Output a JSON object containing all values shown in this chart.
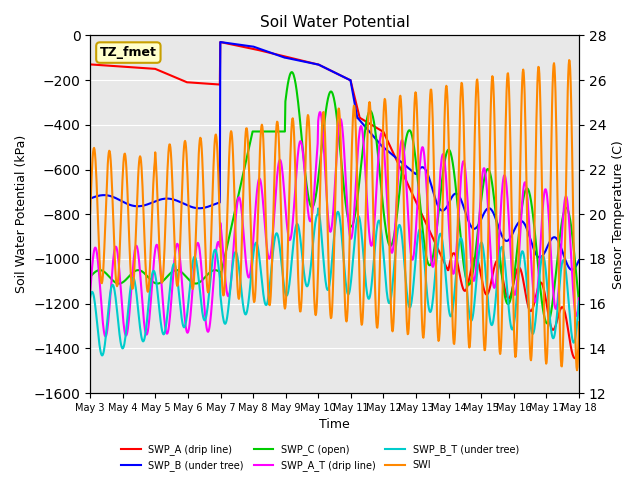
{
  "title": "Soil Water Potential",
  "ylabel_left": "Soil Water Potential (kPa)",
  "ylabel_right": "Sensor Temperature (C)",
  "xlabel": "Time",
  "ylim_left": [
    -1600,
    0
  ],
  "ylim_right": [
    12,
    28
  ],
  "yticks_left": [
    0,
    -200,
    -400,
    -600,
    -800,
    -1000,
    -1200,
    -1400,
    -1600
  ],
  "yticks_right": [
    12,
    14,
    16,
    18,
    20,
    22,
    24,
    26,
    28
  ],
  "background_color": "#e8e8e8",
  "fig_background": "#ffffff",
  "label_box_text": "TZ_fmet",
  "label_box_bg": "#ffffcc",
  "label_box_edge": "#c8a000",
  "series": {
    "SWP_A": {
      "color": "#ff0000",
      "label": "SWP_A (drip line)",
      "lw": 1.5
    },
    "SWP_B": {
      "color": "#0000ff",
      "label": "SWP_B (under tree)",
      "lw": 1.5
    },
    "SWP_C": {
      "color": "#00cc00",
      "label": "SWP_C (open)",
      "lw": 1.5
    },
    "SWP_A_T": {
      "color": "#ff00ff",
      "label": "SWP_A_T (drip line)",
      "lw": 1.5
    },
    "SWP_B_T": {
      "color": "#00cccc",
      "label": "SWP_B_T (under tree)",
      "lw": 1.5
    },
    "SWP_C_T": {
      "color": "#ff8800",
      "label": "SWI",
      "lw": 1.5
    }
  },
  "x_start": 3,
  "x_end": 18,
  "xtick_positions": [
    3,
    4,
    5,
    6,
    7,
    8,
    9,
    10,
    11,
    12,
    13,
    14,
    15,
    16,
    17,
    18
  ],
  "xtick_labels": [
    "May 3",
    "May 4",
    "May 5",
    "May 6",
    "May 7",
    "May 8",
    "May 9",
    "May 10",
    "May 11",
    "May 12",
    "May 13",
    "May 14",
    "May 15",
    "May 16",
    "May 17",
    "May 18"
  ]
}
